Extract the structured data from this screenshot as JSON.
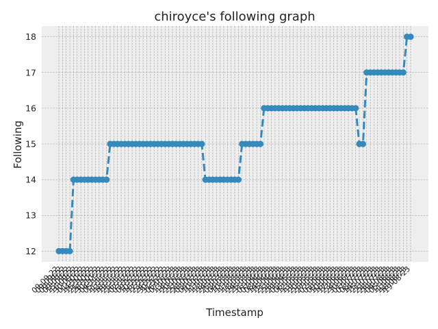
{
  "chart_data": {
    "type": "line",
    "title": "chiroyce's following graph",
    "xlabel": "Timestamp",
    "ylabel": "Following",
    "ylim": [
      11.7,
      18.3
    ],
    "yticks": [
      12,
      13,
      14,
      15,
      16,
      17,
      18
    ],
    "grid": true,
    "legend": "none",
    "colors": {
      "line": "#348ABD",
      "plot_bg": "#EEEEEE",
      "grid": "#9A9A9A"
    },
    "x": [
      "09-09-22",
      "09-09-22",
      "09-09-22",
      "09-09-22",
      "15-09-22",
      "16-09-22",
      "30-09-22",
      "01-10-22",
      "14-10-22",
      "15-10-22",
      "21-10-22",
      "28-10-22",
      "30-10-22",
      "04-11-22",
      "05-11-22",
      "11-11-22",
      "12-11-22",
      "18-11-22",
      "19-11-22",
      "25-11-22",
      "26-11-22",
      "02-12-22",
      "03-12-22",
      "09-12-22",
      "10-12-22",
      "16-12-22",
      "17-12-22",
      "23-12-22",
      "24-12-22",
      "30-12-22",
      "31-12-22",
      "06-01-23",
      "07-01-23",
      "13-01-23",
      "14-01-23",
      "20-01-23",
      "21-01-23",
      "27-01-23",
      "28-01-23",
      "03-02-23",
      "04-02-23",
      "10-02-23",
      "11-02-23",
      "17-02-23",
      "18-02-23",
      "24-02-23",
      "25-02-23",
      "03-03-23",
      "04-03-23",
      "10-03-23",
      "11-03-23",
      "17-03-23",
      "18-03-23",
      "24-03-23",
      "25-03-23",
      "31-03-23",
      "01-04-23",
      "07-04-23",
      "08-04-23",
      "14-04-23",
      "15-04-23",
      "21-04-23",
      "22-04-23",
      "28-04-23",
      "29-04-23",
      "05-05-23",
      "06-05-23",
      "12-05-23",
      "13-05-23",
      "19-05-23",
      "20-05-23",
      "26-05-23",
      "27-05-23",
      "02-06-23",
      "03-06-23",
      "09-06-23",
      "10-06-23",
      "16-06-23",
      "17-06-23",
      "23-06-23",
      "24-06-23",
      "30-06-23",
      "01-07-23",
      "07-07-23",
      "08-07-23",
      "14-07-23",
      "15-07-23",
      "21-07-23",
      "22-07-23",
      "28-07-23",
      "29-07-23",
      "04-08-23",
      "05-08-23",
      "11-08-23",
      "12-08-23",
      "18-08-23",
      "19-08-23"
    ],
    "series": [
      {
        "values": [
          12,
          12,
          12,
          12,
          14,
          14,
          14,
          14,
          14,
          14,
          14,
          14,
          14,
          14,
          15,
          15,
          15,
          15,
          15,
          15,
          15,
          15,
          15,
          15,
          15,
          15,
          15,
          15,
          15,
          15,
          15,
          15,
          15,
          15,
          15,
          15,
          15,
          15,
          15,
          15,
          14,
          14,
          14,
          14,
          14,
          14,
          14,
          14,
          14,
          14,
          15,
          15,
          15,
          15,
          15,
          15,
          16,
          16,
          16,
          16,
          16,
          16,
          16,
          16,
          16,
          16,
          16,
          16,
          16,
          16,
          16,
          16,
          16,
          16,
          16,
          16,
          16,
          16,
          16,
          16,
          16,
          16,
          15,
          15,
          17,
          17,
          17,
          17,
          17,
          17,
          17,
          17,
          17,
          17,
          17,
          18,
          18
        ]
      }
    ]
  }
}
